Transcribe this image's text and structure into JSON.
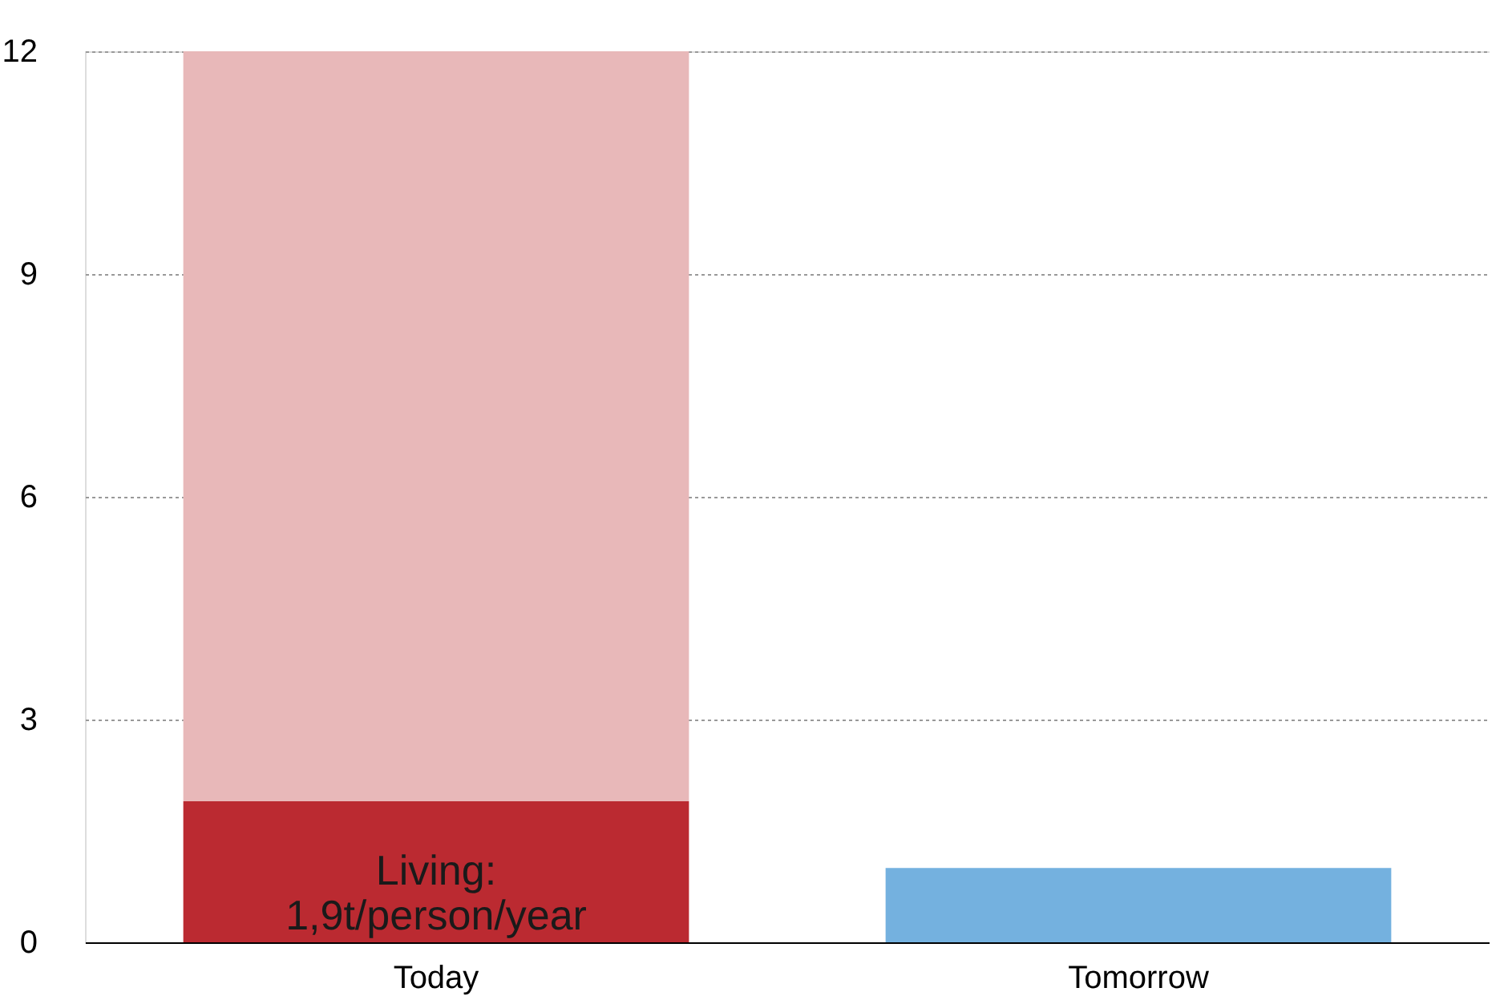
{
  "chart_data": {
    "type": "bar",
    "stacked": true,
    "categories": [
      "Today",
      "Tomorrow"
    ],
    "series": [
      {
        "colors": [
          "#bb2a31",
          "#74b1df"
        ],
        "values": [
          1.9,
          1.0
        ],
        "value_labels": [
          "Living:\n1,9t/person/year",
          null
        ]
      },
      {
        "color": "#e8b8b9",
        "values": [
          10.1,
          null
        ]
      }
    ],
    "ylim": [
      0,
      12
    ],
    "yticks": [
      0,
      3,
      6,
      9,
      12
    ],
    "grid": "y"
  }
}
